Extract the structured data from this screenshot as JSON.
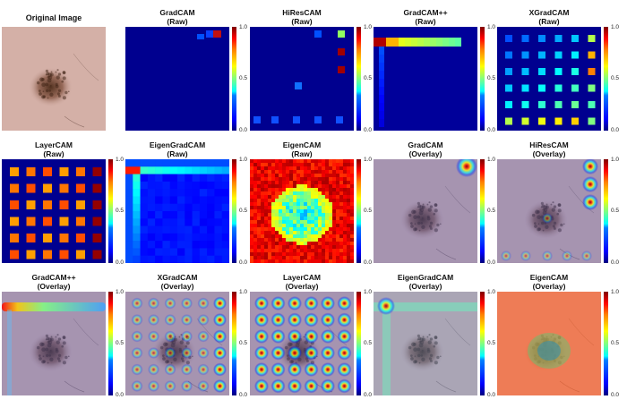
{
  "figure": {
    "panels": [
      {
        "id": "orig",
        "title_line1": "Original Image",
        "title_line2": "",
        "kind": "original",
        "colorbar": false
      },
      {
        "id": "gradcam_raw",
        "title_line1": "GradCAM",
        "title_line2": "(Raw)",
        "kind": "raw",
        "colorbar": true
      },
      {
        "id": "hirescam_raw",
        "title_line1": "HiResCAM",
        "title_line2": "(Raw)",
        "kind": "raw",
        "colorbar": true
      },
      {
        "id": "gradcampp_raw",
        "title_line1": "GradCAM++",
        "title_line2": "(Raw)",
        "kind": "raw",
        "colorbar": true
      },
      {
        "id": "xgradcam_raw",
        "title_line1": "XGradCAM",
        "title_line2": "(Raw)",
        "kind": "raw",
        "colorbar": true
      },
      {
        "id": "layercam_raw",
        "title_line1": "LayerCAM",
        "title_line2": "(Raw)",
        "kind": "raw",
        "colorbar": true
      },
      {
        "id": "eigengradcam_raw",
        "title_line1": "EigenGradCAM",
        "title_line2": "(Raw)",
        "kind": "raw",
        "colorbar": true
      },
      {
        "id": "eigencam_raw",
        "title_line1": "EigenCAM",
        "title_line2": "(Raw)",
        "kind": "raw",
        "colorbar": true
      },
      {
        "id": "gradcam_ov",
        "title_line1": "GradCAM",
        "title_line2": "(Overlay)",
        "kind": "overlay",
        "colorbar": true
      },
      {
        "id": "hirescam_ov",
        "title_line1": "HiResCAM",
        "title_line2": "(Overlay)",
        "kind": "overlay",
        "colorbar": true
      },
      {
        "id": "gradcampp_ov",
        "title_line1": "GradCAM++",
        "title_line2": "(Overlay)",
        "kind": "overlay",
        "colorbar": true
      },
      {
        "id": "xgradcam_ov",
        "title_line1": "XGradCAM",
        "title_line2": "(Overlay)",
        "kind": "overlay",
        "colorbar": true
      },
      {
        "id": "layercam_ov",
        "title_line1": "LayerCAM",
        "title_line2": "(Overlay)",
        "kind": "overlay",
        "colorbar": true
      },
      {
        "id": "eigengradcam_ov",
        "title_line1": "EigenGradCAM",
        "title_line2": "(Overlay)",
        "kind": "overlay",
        "colorbar": true
      },
      {
        "id": "eigencam_ov",
        "title_line1": "EigenCAM",
        "title_line2": "(Overlay)",
        "kind": "overlay",
        "colorbar": true
      }
    ],
    "colorbar_ticks": [
      "1.0",
      "0.5",
      "0.0"
    ],
    "colormap": "jet",
    "colors": {
      "background": "#ffffff",
      "skin": "#c9a39a",
      "lesion": "#5a3522",
      "jet_low": "#00008f",
      "jet_high": "#7f0000"
    }
  }
}
